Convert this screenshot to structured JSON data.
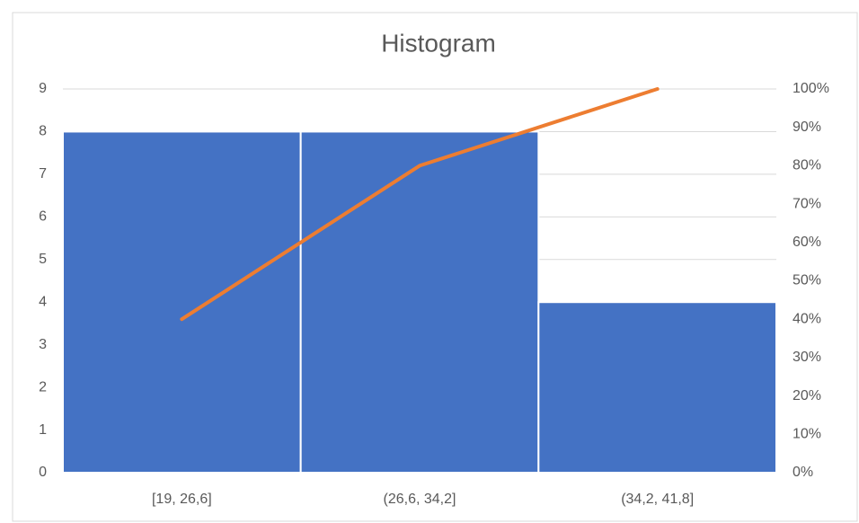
{
  "chart_data": {
    "type": "bar",
    "title": "Histogram",
    "categories": [
      "[19, 26,6]",
      "(26,6, 34,2]",
      "(34,2, 41,8]"
    ],
    "series": [
      {
        "color": "#4472c4",
        "values": [
          8,
          8,
          4
        ]
      },
      {
        "type": "line",
        "axis": "y2",
        "color": "#ed7d31",
        "values": [
          40,
          80,
          100
        ]
      }
    ],
    "ylim": [
      0,
      9
    ],
    "yticks": [
      0,
      1,
      2,
      3,
      4,
      5,
      6,
      7,
      8,
      9
    ],
    "y2lim": [
      0,
      100
    ],
    "y2ticks": [
      {
        "value": 0,
        "label": "0%"
      },
      {
        "value": 10,
        "label": "10%"
      },
      {
        "value": 20,
        "label": "20%"
      },
      {
        "value": 30,
        "label": "30%"
      },
      {
        "value": 40,
        "label": "40%"
      },
      {
        "value": 50,
        "label": "50%"
      },
      {
        "value": 60,
        "label": "60%"
      },
      {
        "value": 70,
        "label": "70%"
      },
      {
        "value": 80,
        "label": "80%"
      },
      {
        "value": 90,
        "label": "90%"
      },
      {
        "value": 100,
        "label": "100%"
      }
    ],
    "grid": true
  }
}
